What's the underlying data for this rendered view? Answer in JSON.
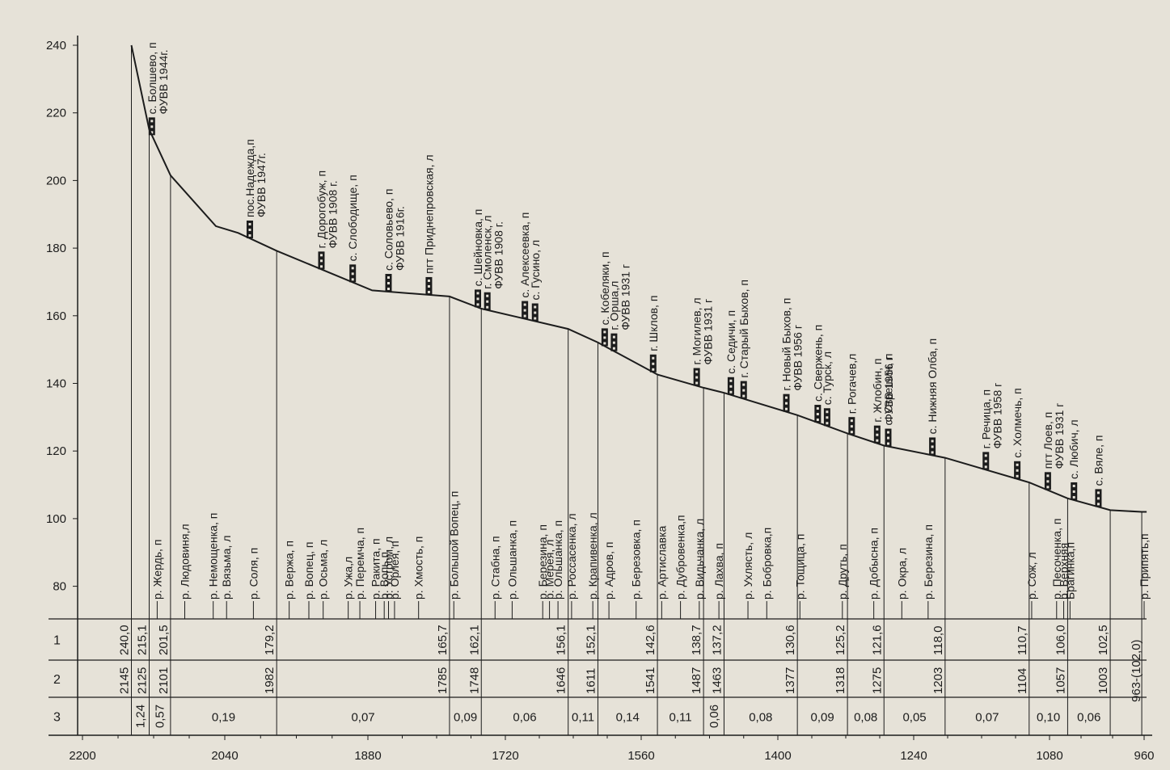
{
  "chart_data": {
    "type": "line",
    "title": "",
    "xlabel": "",
    "ylabel": "",
    "x_ticks": [
      2200,
      2040,
      1880,
      1720,
      1560,
      1400,
      1240,
      1080,
      960
    ],
    "y_ticks": [
      240,
      220,
      200,
      180,
      160,
      140,
      120,
      100,
      80
    ],
    "xlim": [
      2200,
      960
    ],
    "ylim": [
      70,
      245
    ],
    "grid": false,
    "profile": [
      {
        "x": 2145,
        "y": 240.0
      },
      {
        "x": 2125,
        "y": 215.1
      },
      {
        "x": 2101,
        "y": 201.5
      },
      {
        "x": 2050,
        "y": 186.5
      },
      {
        "x": 2025,
        "y": 184.5
      },
      {
        "x": 1982,
        "y": 179.2
      },
      {
        "x": 1875,
        "y": 167.5
      },
      {
        "x": 1785,
        "y": 165.7
      },
      {
        "x": 1748,
        "y": 162.1
      },
      {
        "x": 1646,
        "y": 156.1
      },
      {
        "x": 1611,
        "y": 152.1
      },
      {
        "x": 1541,
        "y": 142.6
      },
      {
        "x": 1487,
        "y": 138.7
      },
      {
        "x": 1463,
        "y": 137.2
      },
      {
        "x": 1377,
        "y": 130.6
      },
      {
        "x": 1318,
        "y": 125.2
      },
      {
        "x": 1275,
        "y": 121.6
      },
      {
        "x": 1203,
        "y": 118.0
      },
      {
        "x": 1104,
        "y": 110.7
      },
      {
        "x": 1057,
        "y": 106.0
      },
      {
        "x": 1003,
        "y": 102.5
      },
      {
        "x": 963,
        "y": 102.0
      }
    ],
    "settlements": [
      {
        "x": 2122,
        "label": "с. Болшево, п",
        "gauge": "УВВ 1944г.",
        "stn": true
      },
      {
        "x": 2012,
        "label": "пос.Надежда,п",
        "gauge": "УВВ 1947г.",
        "stn": true
      },
      {
        "x": 1932,
        "label": "г. Дорогобуж, п",
        "gauge": "УВВ 1908 г.",
        "stn": true
      },
      {
        "x": 1897,
        "label": "с. Слободище, п",
        "gauge": "",
        "stn": true
      },
      {
        "x": 1856,
        "label": "с. Соловьево, п",
        "gauge": "УВВ 1916г.",
        "stn": true
      },
      {
        "x": 1809,
        "label": "пгт Приднепровская, л",
        "gauge": "",
        "stn": true
      },
      {
        "x": 1752,
        "label": "с. Шейновка, п",
        "gauge": "",
        "stn": true
      },
      {
        "x": 1741,
        "label": "г. Смоленск, л",
        "gauge": "УВВ 1908 г.",
        "stn": true
      },
      {
        "x": 1697,
        "label": "с. Алексеевка, п",
        "gauge": "",
        "stn": true
      },
      {
        "x": 1685,
        "label": "с. Гусино, л",
        "gauge": "",
        "stn": true
      },
      {
        "x": 1603,
        "label": "с. Кобеляки, п",
        "gauge": "",
        "stn": true
      },
      {
        "x": 1592,
        "label": "г. Орша,л",
        "gauge": "УВВ 1931 г",
        "stn": true
      },
      {
        "x": 1546,
        "label": "г. Шклов, п",
        "gauge": "",
        "stn": true
      },
      {
        "x": 1495,
        "label": "г. Могилев, л",
        "gauge": "УВВ 1931 г",
        "stn": true
      },
      {
        "x": 1455,
        "label": "с. Седичи, п",
        "gauge": "",
        "stn": true
      },
      {
        "x": 1440,
        "label": "г. Старый Быхов, п",
        "gauge": "",
        "stn": true
      },
      {
        "x": 1390,
        "label": "г. Новый Быхов, п",
        "gauge": "УВВ 1956 г",
        "stn": true
      },
      {
        "x": 1353,
        "label": "с. Свержень, п",
        "gauge": "",
        "stn": true
      },
      {
        "x": 1342,
        "label": "с. Турск, л",
        "gauge": "",
        "stn": true
      },
      {
        "x": 1313,
        "label": "г. Рогачев,л",
        "gauge": "",
        "stn": true
      },
      {
        "x": 1283,
        "label": "г. Жлобин, п",
        "gauge": "УВВ 1956 г",
        "stn": true
      },
      {
        "x": 1270,
        "label": "с. Стрешин, п",
        "gauge": "",
        "stn": true
      },
      {
        "x": 1218,
        "label": "с. Нижняя Олба, п",
        "gauge": "",
        "stn": true
      },
      {
        "x": 1155,
        "label": "г. Речица, п",
        "gauge": "УВВ 1958 г",
        "stn": true
      },
      {
        "x": 1118,
        "label": "с. Холмечь, п",
        "gauge": "",
        "stn": true
      },
      {
        "x": 1082,
        "label": "пгт Лоев, п",
        "gauge": "УВВ 1931 г",
        "stn": true
      },
      {
        "x": 1049,
        "label": "с. Любич, л",
        "gauge": "",
        "stn": true
      },
      {
        "x": 1018,
        "label": "с. Вяле, п",
        "gauge": "",
        "stn": true
      }
    ],
    "tributaries": [
      {
        "x": 2116,
        "label": "р. Жердь, п"
      },
      {
        "x": 2085,
        "label": "р. Людовиня,л"
      },
      {
        "x": 2053,
        "label": "р. Немощенка, п"
      },
      {
        "x": 2038,
        "label": "р. Вязьма, л"
      },
      {
        "x": 2008,
        "label": "р. Соля, п"
      },
      {
        "x": 1968,
        "label": "р. Вержа, п"
      },
      {
        "x": 1946,
        "label": "р. Вопец, п"
      },
      {
        "x": 1930,
        "label": "р. Осьма, л"
      },
      {
        "x": 1902,
        "label": "р. Ужа,л"
      },
      {
        "x": 1889,
        "label": "р. Перемча, п"
      },
      {
        "x": 1871,
        "label": "р. Ракита, п"
      },
      {
        "x": 1861,
        "label": "р. Вопь,п"
      },
      {
        "x": 1856,
        "label": "р. Устром, л"
      },
      {
        "x": 1849,
        "label": "р. Орлея, п"
      },
      {
        "x": 1821,
        "label": "р. Хмость, п"
      },
      {
        "x": 1780,
        "label": "р. Большой Вопец, п"
      },
      {
        "x": 1732,
        "label": "р. Стабна, п"
      },
      {
        "x": 1712,
        "label": "р. Ольшанка, п"
      },
      {
        "x": 1676,
        "label": "р. Березина, п"
      },
      {
        "x": 1668,
        "label": "р. Мерея, л"
      },
      {
        "x": 1658,
        "label": "р. Ольшанка, п"
      },
      {
        "x": 1642,
        "label": "р. Россасенка, л"
      },
      {
        "x": 1617,
        "label": "р. Крапивенка, л"
      },
      {
        "x": 1598,
        "label": "р. Адров, п"
      },
      {
        "x": 1566,
        "label": "р. Березовка, п"
      },
      {
        "x": 1536,
        "label": "р. Артиславка"
      },
      {
        "x": 1514,
        "label": "р. Дубровенка,п"
      },
      {
        "x": 1492,
        "label": "р. Видьчанка, л"
      },
      {
        "x": 1469,
        "label": "р. Лахва, п"
      },
      {
        "x": 1435,
        "label": "р. Ухлясть, л"
      },
      {
        "x": 1413,
        "label": "р. Бобровка,п"
      },
      {
        "x": 1374,
        "label": "р. Тощица, п"
      },
      {
        "x": 1324,
        "label": "р. Друть, п"
      },
      {
        "x": 1287,
        "label": "р. Добысна, п"
      },
      {
        "x": 1254,
        "label": "р. Окра, л"
      },
      {
        "x": 1223,
        "label": "р. Березина, п"
      },
      {
        "x": 1101,
        "label": "р. Сож, л"
      },
      {
        "x": 1071,
        "label": "р. Песоченка, п"
      },
      {
        "x": 1062,
        "label": "р. Верхняя"
      },
      {
        "x": 1054,
        "label": "Брагинка,п"
      },
      {
        "x": 958,
        "label": "р. Припять,п"
      }
    ],
    "table": {
      "row_labels": [
        "1",
        "2",
        "3"
      ],
      "breakpoints": [
        {
          "km": 2145,
          "l1": "240,0",
          "l2": "2145"
        },
        {
          "km": 2125,
          "l1": "215,1",
          "l2": "2125"
        },
        {
          "km": 2101,
          "l1": "201,5",
          "l2": "2101"
        },
        {
          "km": 1982,
          "l1": "179,2",
          "l2": "1982"
        },
        {
          "km": 1785,
          "l1": "165,7",
          "l2": "1785"
        },
        {
          "km": 1748,
          "l1": "162,1",
          "l2": "1748"
        },
        {
          "km": 1646,
          "l1": "156,1",
          "l2": "1646"
        },
        {
          "km": 1611,
          "l1": "152,1",
          "l2": "1611"
        },
        {
          "km": 1541,
          "l1": "142,6",
          "l2": "1541"
        },
        {
          "km": 1487,
          "l1": "138,7",
          "l2": "1487"
        },
        {
          "km": 1463,
          "l1": "137,2",
          "l2": "1463"
        },
        {
          "km": 1377,
          "l1": "130,6",
          "l2": "1377"
        },
        {
          "km": 1318,
          "l1": "125,2",
          "l2": "1318"
        },
        {
          "km": 1275,
          "l1": "121,6",
          "l2": "1275"
        },
        {
          "km": 1203,
          "l1": "118,0",
          "l2": "1203"
        },
        {
          "km": 1104,
          "l1": "110,7",
          "l2": "1104"
        },
        {
          "km": 1057,
          "l1": "106,0",
          "l2": "1057"
        },
        {
          "km": 1003,
          "l1": "102,5",
          "l2": "1003"
        },
        {
          "km": 963,
          "l1": "963-(102,0)",
          "l2": ""
        }
      ],
      "slopes": [
        "1,24",
        "0,57",
        "0,19",
        "0,07",
        "0,09",
        "0,06",
        "0,11",
        "0,14",
        "0,11",
        "0,06",
        "0,08",
        "0,09",
        "0,08",
        "0,05",
        "0,07",
        "0,10",
        "0,06"
      ],
      "slopes_vertical": [
        true,
        true,
        false,
        false,
        false,
        false,
        false,
        false,
        false,
        true,
        false,
        false,
        false,
        false,
        false,
        false,
        false
      ]
    }
  }
}
